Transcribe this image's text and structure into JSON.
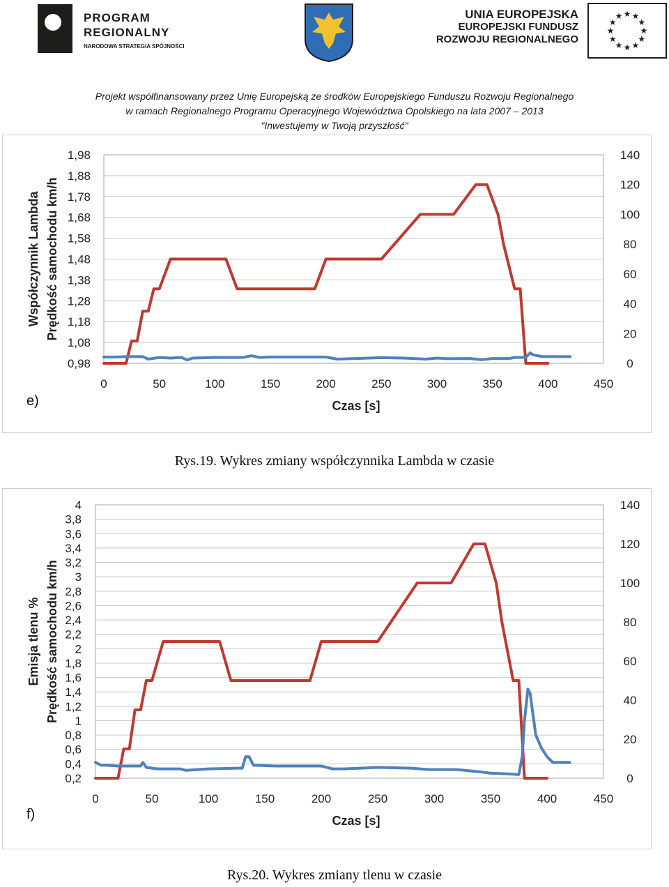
{
  "header": {
    "logo_left": {
      "line1": "PROGRAM",
      "line2": "REGIONALNY",
      "line3": "NARODOWA STRATEGIA SPÓJNOŚCI"
    },
    "logo_right": {
      "line1": "UNIA EUROPEJSKA",
      "line2": "EUROPEJSKI FUNDUSZ",
      "line3": "ROZWOJU REGIONALNEGO"
    },
    "line1": "Projekt współfinansowany przez Unię Europejską ze środków Europejskiego Funduszu Rozwoju Regionalnego",
    "line2": "w ramach Regionalnego Programu Operacyjnego Województwa Opolskiego na lata 2007 – 2013",
    "line3": "\"Inwestujemy w Twoją przyszłość\""
  },
  "colors": {
    "speed": "#c0392f",
    "measure": "#4f81bd",
    "grid": "#c8c8c8",
    "flag_star": "#1d1d1b",
    "coa_bg": "#2f6db5",
    "coa_eagle": "#f2c12e"
  },
  "chart_data": [
    {
      "type": "line",
      "panel_label": "e)",
      "caption": "Rys.19. Wykres zmiany współczynnika Lambda w czasie",
      "xlabel": "Czas [s]",
      "ylabel_left_1": "Współczynnik Lambda",
      "ylabel_left_2": "Prędkość samochodu   km/h",
      "xlim": [
        0,
        450
      ],
      "x_ticks": [
        "0",
        "50",
        "100",
        "150",
        "200",
        "250",
        "300",
        "350",
        "400",
        "450"
      ],
      "ylim_left": [
        0.98,
        1.98
      ],
      "y_ticks_left": [
        "0,98",
        "1,08",
        "1,18",
        "1,28",
        "1,38",
        "1,48",
        "1,58",
        "1,68",
        "1,78",
        "1,88",
        "1,98"
      ],
      "ylim_right": [
        0,
        140
      ],
      "y_ticks_right": [
        "0",
        "20",
        "40",
        "60",
        "80",
        "100",
        "120",
        "140"
      ],
      "grid": true,
      "series": [
        {
          "axis": "right",
          "x": [
            0,
            20,
            25,
            30,
            35,
            40,
            45,
            50,
            60,
            110,
            120,
            190,
            200,
            250,
            285,
            310,
            315,
            335,
            345,
            355,
            360,
            370,
            375,
            380,
            387,
            400
          ],
          "y": [
            0,
            0,
            15,
            15,
            35,
            35,
            50,
            50,
            70,
            70,
            50,
            50,
            70,
            70,
            100,
            100,
            100,
            120,
            120,
            100,
            80,
            50,
            50,
            0,
            0,
            0
          ]
        },
        {
          "axis": "left",
          "x": [
            0,
            10,
            20,
            35,
            40,
            50,
            60,
            70,
            75,
            80,
            100,
            125,
            133,
            140,
            150,
            200,
            210,
            250,
            270,
            290,
            300,
            310,
            330,
            340,
            350,
            365,
            370,
            380,
            384,
            387,
            395,
            420
          ],
          "y": [
            1.01,
            1.01,
            1.012,
            1.012,
            1.0,
            1.008,
            1.005,
            1.008,
            0.996,
            1.005,
            1.008,
            1.008,
            1.016,
            1.008,
            1.01,
            1.01,
            1.0,
            1.007,
            1.005,
            1.0,
            1.005,
            1.002,
            1.003,
            0.997,
            1.003,
            1.003,
            1.008,
            1.008,
            1.03,
            1.02,
            1.012,
            1.012
          ]
        }
      ]
    },
    {
      "type": "line",
      "panel_label": "f)",
      "caption": "Rys.20. Wykres zmiany tlenu w czasie",
      "xlabel": "Czas [s]",
      "ylabel_left_1": "Emisja tlenu   %",
      "ylabel_left_2": "Prędkość samochodu   km/h",
      "xlim": [
        0,
        450
      ],
      "x_ticks": [
        "0",
        "50",
        "100",
        "150",
        "200",
        "250",
        "300",
        "350",
        "400",
        "450"
      ],
      "ylim_left": [
        0.2,
        4
      ],
      "y_ticks_left": [
        "0,2",
        "0,4",
        "0,6",
        "0,8",
        "1",
        "1,2",
        "1,4",
        "1,6",
        "1,8",
        "2",
        "2,2",
        "2,4",
        "2,6",
        "2,8",
        "3",
        "3,2",
        "3,4",
        "3,6",
        "3,8",
        "4"
      ],
      "ylim_right": [
        0,
        140
      ],
      "y_ticks_right": [
        "0",
        "20",
        "40",
        "60",
        "80",
        "100",
        "120",
        "140"
      ],
      "grid": true,
      "series": [
        {
          "axis": "right",
          "x": [
            0,
            20,
            25,
            30,
            35,
            40,
            45,
            50,
            60,
            110,
            120,
            190,
            200,
            250,
            285,
            310,
            315,
            335,
            345,
            355,
            360,
            370,
            375,
            380,
            387,
            400
          ],
          "y": [
            0,
            0,
            15,
            15,
            35,
            35,
            50,
            50,
            70,
            70,
            50,
            50,
            70,
            70,
            100,
            100,
            100,
            120,
            120,
            100,
            80,
            50,
            50,
            0,
            0,
            0
          ]
        },
        {
          "axis": "left",
          "x": [
            0,
            5,
            10,
            20,
            40,
            42,
            45,
            55,
            60,
            75,
            80,
            100,
            125,
            130,
            133,
            136,
            140,
            160,
            200,
            210,
            220,
            250,
            280,
            295,
            320,
            340,
            350,
            365,
            375,
            378,
            380,
            383,
            385,
            390,
            395,
            400,
            405,
            420
          ],
          "y": [
            0.42,
            0.38,
            0.38,
            0.37,
            0.37,
            0.42,
            0.35,
            0.33,
            0.33,
            0.33,
            0.31,
            0.33,
            0.34,
            0.34,
            0.5,
            0.5,
            0.38,
            0.37,
            0.37,
            0.33,
            0.33,
            0.35,
            0.34,
            0.32,
            0.32,
            0.29,
            0.27,
            0.26,
            0.25,
            0.5,
            1.0,
            1.44,
            1.38,
            0.8,
            0.62,
            0.5,
            0.42,
            0.42
          ]
        }
      ]
    }
  ]
}
